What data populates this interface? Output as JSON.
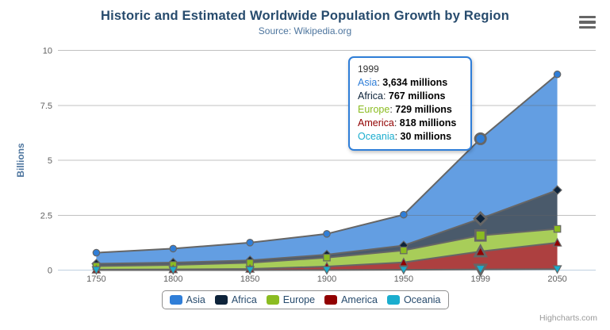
{
  "header": {
    "title": "Historic and Estimated Worldwide Population Growth by Region",
    "subtitle": "Source: Wikipedia.org"
  },
  "chart_data": {
    "type": "area",
    "stacking": "normal",
    "title": "Historic and Estimated Worldwide Population Growth by Region",
    "subtitle": "Source: Wikipedia.org",
    "categories": [
      "1750",
      "1800",
      "1850",
      "1900",
      "1950",
      "1999",
      "2050"
    ],
    "series": [
      {
        "name": "Asia",
        "color": "#2f7ed8",
        "marker": "circle",
        "values": [
          502,
          635,
          809,
          947,
          1402,
          3634,
          5268
        ]
      },
      {
        "name": "Africa",
        "color": "#0d233a",
        "marker": "diamond",
        "values": [
          106,
          107,
          111,
          133,
          221,
          767,
          1766
        ]
      },
      {
        "name": "Europe",
        "color": "#8bbc21",
        "marker": "square",
        "values": [
          163,
          203,
          276,
          408,
          547,
          729,
          628
        ]
      },
      {
        "name": "America",
        "color": "#910000",
        "marker": "triangle",
        "values": [
          18,
          31,
          54,
          156,
          339,
          818,
          1201
        ]
      },
      {
        "name": "Oceania",
        "color": "#1aadce",
        "marker": "triangle-down",
        "values": [
          2,
          2,
          2,
          6,
          13,
          30,
          46
        ]
      }
    ],
    "values_unit": "millions",
    "xlabel": "",
    "ylabel": "Billions",
    "yticks": [
      0,
      2.5,
      5,
      7.5,
      10
    ],
    "ylim": [
      0,
      10
    ],
    "grid": true,
    "legend_position": "bottom",
    "hover_index": 5,
    "line_color": "#666666",
    "grid_color": "#c0c0c0",
    "axis_line_color": "#C0D0E0",
    "fill_opacity": 0.75
  },
  "tooltip": {
    "header": "1999",
    "border_color": "#2f7ed8",
    "rows": [
      {
        "name": "Asia",
        "color": "#2f7ed8",
        "value": "3,634",
        "suffix": "millions"
      },
      {
        "name": "Africa",
        "color": "#0d233a",
        "value": "767",
        "suffix": "millions"
      },
      {
        "name": "Europe",
        "color": "#8bbc21",
        "value": "729",
        "suffix": "millions"
      },
      {
        "name": "America",
        "color": "#910000",
        "value": "818",
        "suffix": "millions"
      },
      {
        "name": "Oceania",
        "color": "#1aadce",
        "value": "30",
        "suffix": "millions"
      }
    ]
  },
  "credits": "Highcharts.com"
}
